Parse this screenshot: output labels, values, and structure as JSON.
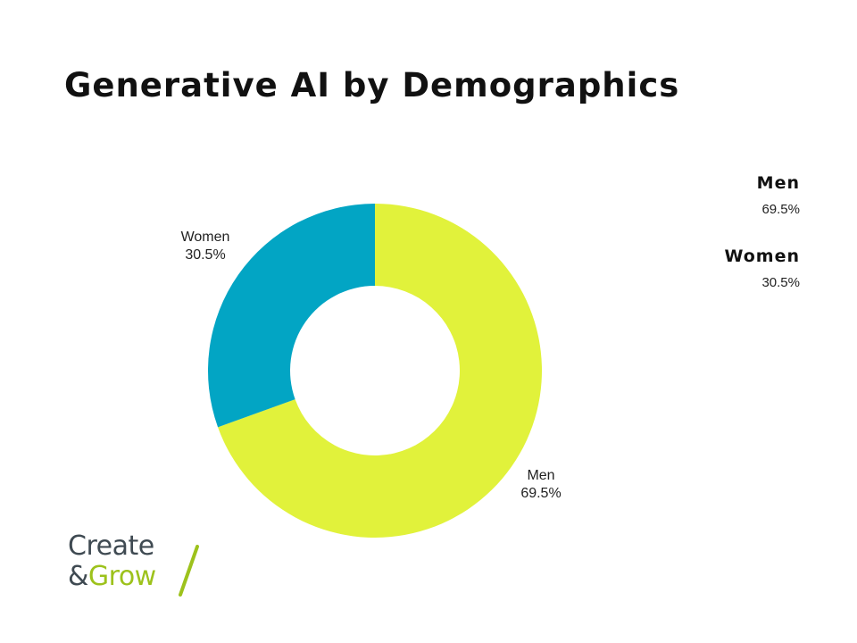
{
  "title": "Generative AI by Demographics",
  "chart_data": {
    "type": "pie",
    "style": "donut",
    "title": "Generative AI by Demographics",
    "slices": [
      {
        "label": "Men",
        "value": 69.5,
        "display": "69.5%",
        "color": "#e1f23b"
      },
      {
        "label": "Women",
        "value": 30.5,
        "display": "30.5%",
        "color": "#02a5c4"
      }
    ],
    "legend": {
      "placement": "top-right",
      "entries": [
        {
          "name": "Men",
          "value": "69.5%"
        },
        {
          "name": "Women",
          "value": "30.5%"
        }
      ]
    }
  },
  "logo": {
    "line1": "Create",
    "line2_amp": "&",
    "line2_word": "Grow",
    "colors": {
      "dark": "#3f4a52",
      "green": "#9dc21c"
    }
  }
}
